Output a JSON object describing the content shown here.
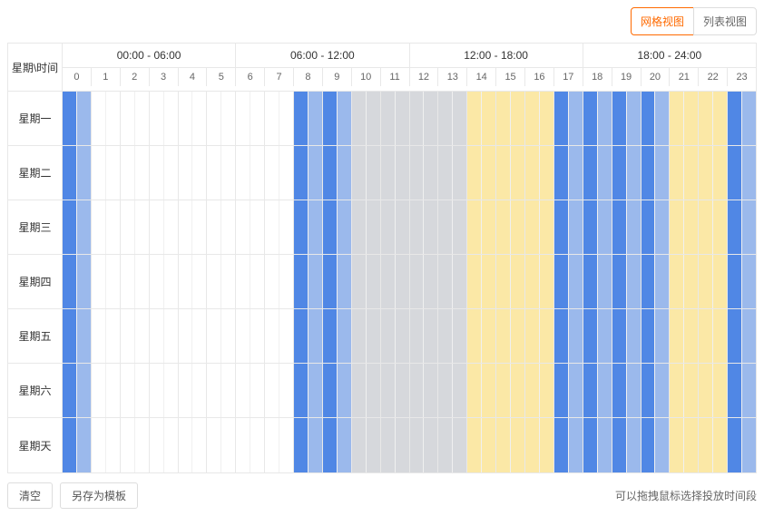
{
  "view_buttons": {
    "grid": "网格视图",
    "list": "列表视图",
    "active": "grid"
  },
  "corner_label": "星期\\时间",
  "time_ranges": [
    "00:00 - 06:00",
    "06:00 - 12:00",
    "12:00 - 18:00",
    "18:00 - 24:00"
  ],
  "hours": [
    0,
    1,
    2,
    3,
    4,
    5,
    6,
    7,
    8,
    9,
    10,
    11,
    12,
    13,
    14,
    15,
    16,
    17,
    18,
    19,
    20,
    21,
    22,
    23
  ],
  "days": [
    "星期一",
    "星期二",
    "星期三",
    "星期四",
    "星期五",
    "星期六",
    "星期天"
  ],
  "colors": {
    "blue_dark": "#5087e5",
    "blue_light": "#9bb9ec",
    "gray": "#d6d8dc",
    "yellow": "#fbe8a6",
    "white": "#ffffff"
  },
  "slot_colors_common": [
    [
      "blue_dark",
      "blue_light"
    ],
    [
      "white",
      "white"
    ],
    [
      "white",
      "white"
    ],
    [
      "white",
      "white"
    ],
    [
      "white",
      "white"
    ],
    [
      "white",
      "white"
    ],
    [
      "white",
      "white"
    ],
    [
      "white",
      "white"
    ],
    [
      "blue_dark",
      "blue_light"
    ],
    [
      "blue_dark",
      "blue_light"
    ],
    [
      "gray",
      "gray"
    ],
    [
      "gray",
      "gray"
    ],
    [
      "gray",
      "gray"
    ],
    [
      "gray",
      "gray"
    ],
    [
      "yellow",
      "yellow"
    ],
    [
      "yellow",
      "yellow"
    ],
    [
      "yellow",
      "yellow"
    ],
    [
      "blue_dark",
      "blue_light"
    ],
    [
      "blue_dark",
      "blue_light"
    ],
    [
      "blue_dark",
      "blue_light"
    ],
    [
      "blue_dark",
      "blue_light"
    ],
    [
      "yellow",
      "yellow"
    ],
    [
      "yellow",
      "yellow"
    ],
    [
      "blue_dark",
      "blue_light"
    ]
  ],
  "buttons": {
    "clear": "清空",
    "save_template": "另存为模板"
  },
  "hint_text": "可以拖拽鼠标选择投放时间段"
}
